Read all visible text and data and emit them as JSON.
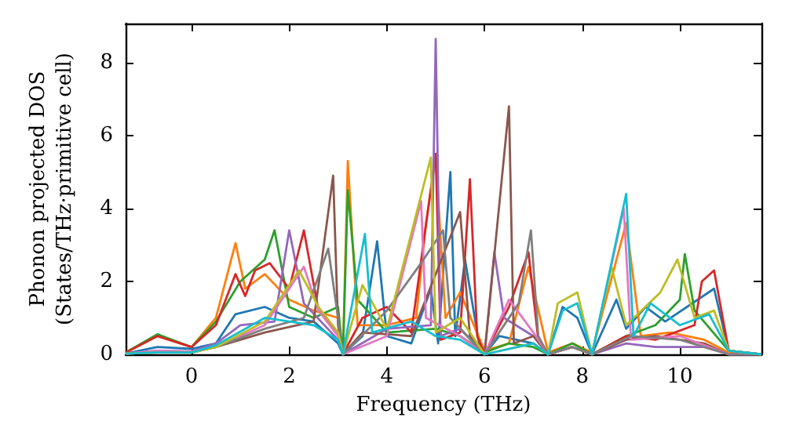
{
  "chart_data": {
    "type": "line",
    "xlabel": "Frequency (THz)",
    "ylabel": "Phonon projected DOS\n(States/THz·primitive cell)",
    "xlim": [
      -1.35,
      11.67
    ],
    "ylim": [
      0,
      9.07
    ],
    "xticks": [
      0,
      2,
      4,
      6,
      8,
      10
    ],
    "yticks": [
      0,
      2,
      4,
      6,
      8
    ],
    "grid": false,
    "marker": "none",
    "line_style": "solid",
    "series": [
      {
        "color": "#1f77b4",
        "x": [
          -1.35,
          -0.7,
          0,
          0.5,
          0.9,
          1.5,
          2.0,
          2.5,
          3.0,
          3.1,
          3.5,
          3.8,
          4.0,
          4.5,
          4.9,
          5.05,
          5.3,
          5.4,
          5.6,
          5.9,
          6.0,
          6.3,
          7.0,
          7.3,
          7.6,
          7.9,
          8.2,
          8.7,
          8.9,
          9.3,
          9.7,
          10.7,
          11.0,
          11.67
        ],
        "values": [
          0.02,
          0.2,
          0.15,
          0.3,
          1.1,
          1.3,
          1.0,
          0.9,
          0.3,
          0,
          0.5,
          3.1,
          0.5,
          0.3,
          1.8,
          0.3,
          5.0,
          0.5,
          2.6,
          0.2,
          0,
          0.5,
          0.3,
          0,
          1.3,
          1.0,
          0,
          1.5,
          0.7,
          1.3,
          0.9,
          1.8,
          0.1,
          0
        ]
      },
      {
        "color": "#ff7f0e",
        "x": [
          -1.35,
          -0.7,
          0,
          0.5,
          0.9,
          1.1,
          1.5,
          2.0,
          2.5,
          3.0,
          3.1,
          3.2,
          3.4,
          4.0,
          4.6,
          4.8,
          5.0,
          5.2,
          5.5,
          6.0,
          6.5,
          6.9,
          7.3,
          7.8,
          8.2,
          8.9,
          9.2,
          9.8,
          10.5,
          11.0,
          11.67
        ],
        "values": [
          0.05,
          0.5,
          0.2,
          1.0,
          3.05,
          1.8,
          2.2,
          1.5,
          1.2,
          1.0,
          0,
          5.3,
          0.8,
          0.8,
          1.0,
          3.6,
          5.4,
          1.0,
          1.7,
          0.1,
          0.3,
          2.4,
          0.05,
          0.3,
          0.05,
          3.6,
          0.5,
          0.6,
          0.4,
          0.05,
          0
        ]
      },
      {
        "color": "#2ca02c",
        "x": [
          -1.35,
          -0.7,
          0,
          0.5,
          1.0,
          1.5,
          1.7,
          2.0,
          2.5,
          3.0,
          3.1,
          3.2,
          3.4,
          4.0,
          5.0,
          5.5,
          6.0,
          6.5,
          7.0,
          7.3,
          7.8,
          8.2,
          8.9,
          9.5,
          10.0,
          10.1,
          10.3,
          11.0,
          11.67
        ],
        "values": [
          0.05,
          0.55,
          0.2,
          0.9,
          2.0,
          2.6,
          3.4,
          1.3,
          1.0,
          1.3,
          0,
          4.5,
          1.5,
          0.6,
          0.7,
          0.5,
          0.05,
          0.3,
          0.2,
          0,
          0.3,
          0,
          0.5,
          0.8,
          1.5,
          2.75,
          1.2,
          0.1,
          0
        ]
      },
      {
        "color": "#d62728",
        "x": [
          -1.35,
          -0.7,
          0,
          0.5,
          0.9,
          1.1,
          1.3,
          1.6,
          2.0,
          2.3,
          2.6,
          3.0,
          3.1,
          3.5,
          4.0,
          4.5,
          5.0,
          5.1,
          5.5,
          5.7,
          5.85,
          6.0,
          6.5,
          6.9,
          7.1,
          7.3,
          7.8,
          8.2,
          8.9,
          9.5,
          10.3,
          10.45,
          10.7,
          11.0,
          11.67
        ],
        "values": [
          0.05,
          0.5,
          0.2,
          0.8,
          2.2,
          1.6,
          2.3,
          2.5,
          1.8,
          3.4,
          1.2,
          0.6,
          0,
          1.0,
          1.3,
          0.6,
          5.5,
          0.4,
          0.6,
          4.8,
          0.5,
          0,
          1.3,
          2.8,
          0.4,
          0,
          0.2,
          0,
          0.5,
          0.4,
          0.8,
          2.0,
          2.3,
          0.1,
          0
        ]
      },
      {
        "color": "#9467bd",
        "x": [
          -1.35,
          -0.7,
          0,
          0.5,
          1.0,
          1.7,
          2.0,
          2.3,
          3.0,
          3.1,
          4.0,
          4.9,
          5.0,
          5.1,
          5.5,
          6.0,
          6.2,
          6.4,
          7.0,
          7.3,
          7.8,
          8.2,
          8.9,
          9.5,
          10.5,
          11.0,
          11.67
        ],
        "values": [
          0.02,
          0.1,
          0.08,
          0.3,
          0.8,
          0.9,
          3.4,
          1.4,
          0.4,
          0,
          0.7,
          0.8,
          8.65,
          0.5,
          0.7,
          0,
          2.8,
          1.0,
          0.5,
          0,
          0.2,
          0,
          0.3,
          0.2,
          0.2,
          0,
          0
        ]
      },
      {
        "color": "#8c564b",
        "x": [
          -1.35,
          -0.7,
          0,
          0.5,
          1.5,
          2.5,
          2.9,
          3.0,
          3.1,
          3.5,
          4.5,
          5.5,
          5.7,
          6.0,
          6.5,
          6.6,
          7.0,
          7.3,
          7.8,
          8.2,
          8.9,
          9.5,
          10.5,
          11.0,
          11.67
        ],
        "values": [
          0.02,
          0.05,
          0.05,
          0.2,
          0.6,
          0.9,
          4.9,
          0.8,
          0,
          0.6,
          0.5,
          3.9,
          0.5,
          0,
          6.8,
          0.3,
          0.5,
          0,
          0.2,
          0,
          0.4,
          0.5,
          0.3,
          0,
          0
        ]
      },
      {
        "color": "#e377c2",
        "x": [
          -1.35,
          -0.7,
          0,
          0.5,
          1.5,
          2.3,
          2.6,
          3.0,
          3.1,
          4.0,
          4.7,
          4.8,
          5.5,
          6.0,
          6.5,
          7.0,
          7.3,
          7.8,
          8.2,
          8.85,
          9.0,
          10.0,
          11.0,
          11.67
        ],
        "values": [
          0.02,
          0.1,
          0.08,
          0.2,
          0.8,
          2.4,
          1.2,
          0.5,
          0,
          0.5,
          4.2,
          1.0,
          0.5,
          0,
          1.5,
          0.6,
          0,
          0.2,
          0,
          4.0,
          0.4,
          0.5,
          0,
          0
        ]
      },
      {
        "color": "#7f7f7f",
        "x": [
          -1.35,
          -0.7,
          0,
          0.5,
          1.5,
          2.3,
          2.8,
          3.0,
          3.1,
          4.0,
          4.7,
          5.15,
          5.3,
          6.0,
          6.7,
          6.95,
          7.1,
          7.3,
          7.8,
          8.2,
          9.0,
          10.0,
          11.0,
          11.67
        ],
        "values": [
          0.02,
          0.05,
          0.05,
          0.2,
          0.7,
          1.0,
          2.9,
          1.0,
          0,
          1.2,
          2.5,
          3.4,
          1.0,
          0,
          1.4,
          3.4,
          0.5,
          0,
          0.2,
          0,
          0.5,
          0.4,
          0,
          0
        ]
      },
      {
        "color": "#bcbd22",
        "x": [
          -1.35,
          -0.7,
          0,
          0.5,
          1.5,
          2.2,
          2.6,
          3.0,
          3.1,
          3.5,
          4.0,
          4.9,
          5.0,
          5.5,
          6.0,
          7.0,
          7.3,
          7.5,
          7.9,
          8.2,
          8.6,
          8.9,
          9.6,
          9.95,
          10.3,
          10.7,
          11.0,
          11.67
        ],
        "values": [
          0.02,
          0.05,
          0.05,
          0.2,
          0.9,
          2.3,
          1.3,
          0.6,
          0,
          1.9,
          0.7,
          5.4,
          0.6,
          1.0,
          0,
          0.3,
          0,
          1.4,
          1.7,
          0,
          2.4,
          0.8,
          1.7,
          2.6,
          1.0,
          1.2,
          0.1,
          0
        ]
      },
      {
        "color": "#17becf",
        "x": [
          -1.35,
          -0.7,
          0,
          0.5,
          1.5,
          2.5,
          3.0,
          3.1,
          3.55,
          3.7,
          4.5,
          5.0,
          5.5,
          6.0,
          7.0,
          7.3,
          7.6,
          7.9,
          8.2,
          8.9,
          9.05,
          9.4,
          10.0,
          10.6,
          11.0,
          11.67
        ],
        "values": [
          0.02,
          0.05,
          0.05,
          0.25,
          1.0,
          0.8,
          0.4,
          0,
          3.3,
          0.6,
          0.9,
          0.5,
          0.4,
          0,
          0.3,
          0,
          1.2,
          1.4,
          0,
          4.4,
          0.5,
          1.4,
          0.8,
          1.1,
          0.1,
          0
        ]
      }
    ]
  }
}
